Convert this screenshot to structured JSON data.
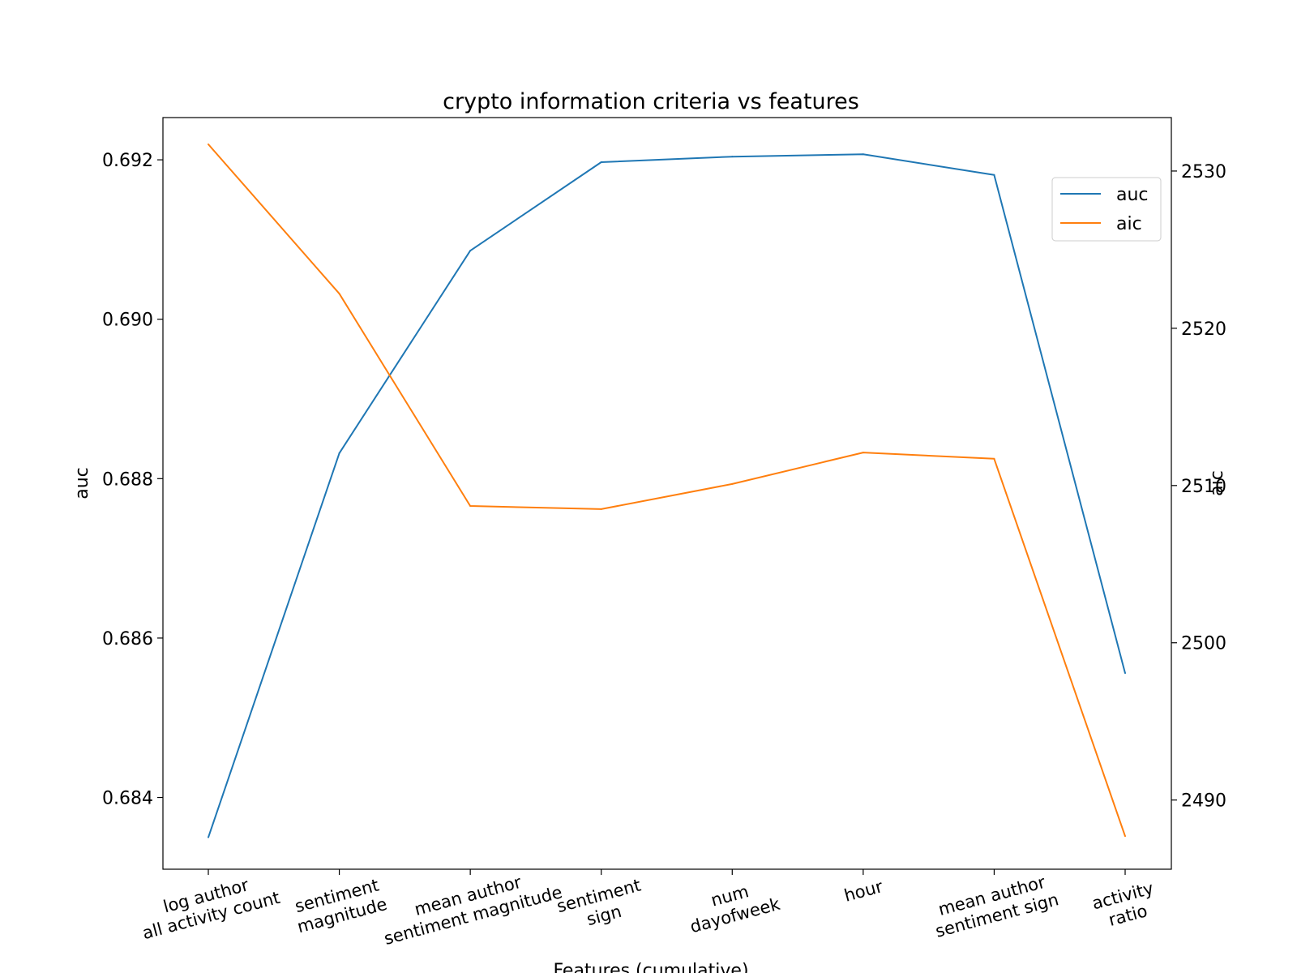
{
  "chart_data": {
    "type": "line",
    "title": "crypto information criteria vs features",
    "xlabel": "Features (cumulative)",
    "ylabel_left": "auc",
    "ylabel_right": "aic",
    "categories": [
      [
        "log author",
        "all activity count"
      ],
      [
        "sentiment",
        "magnitude"
      ],
      [
        "mean author",
        "sentiment magnitude"
      ],
      [
        "sentiment",
        "sign"
      ],
      [
        "num",
        "dayofweek"
      ],
      [
        "hour"
      ],
      [
        "mean author",
        "sentiment sign"
      ],
      [
        "activity",
        "ratio"
      ]
    ],
    "ylim_left": [
      0.6831,
      0.69253
    ],
    "ylim_right": [
      2485.6,
      2533.4
    ],
    "yticks_left": [
      "0.684",
      "0.686",
      "0.688",
      "0.690",
      "0.692"
    ],
    "yticks_right": [
      "2490",
      "2500",
      "2510",
      "2520",
      "2530"
    ],
    "series": [
      {
        "name": "auc",
        "axis": "left",
        "color": "#1f77b4",
        "values": [
          0.6835,
          0.68832,
          0.69086,
          0.69197,
          0.69204,
          0.69207,
          0.69181,
          0.68556
        ]
      },
      {
        "name": "aic",
        "axis": "right",
        "color": "#ff7f0e",
        "values": [
          2531.7,
          2522.2,
          2508.7,
          2508.5,
          2510.1,
          2512.1,
          2511.7,
          2487.7
        ]
      }
    ],
    "legend_position": "upper right",
    "grid": false,
    "xtick_rotation_deg": -15
  }
}
